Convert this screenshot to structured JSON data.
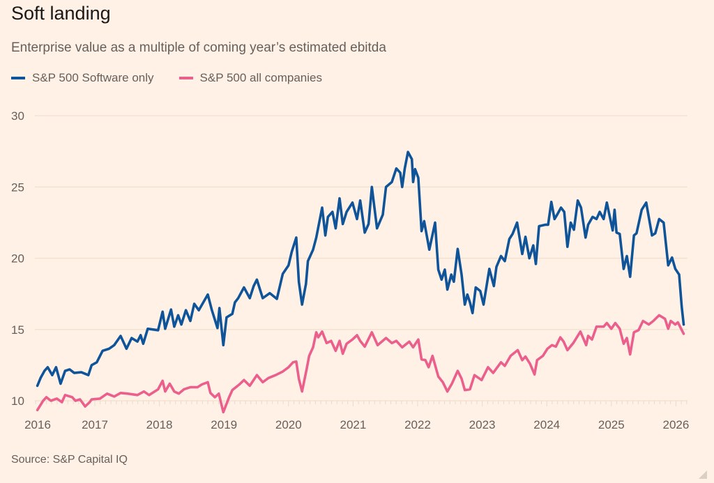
{
  "header": {
    "title": "Soft landing",
    "subtitle": "Enterprise value as a multiple of coming year’s estimated ebitda"
  },
  "footer": {
    "source": "Source: S&P Capital IQ"
  },
  "chart_data": {
    "type": "line",
    "title": "Soft landing",
    "subtitle": "Enterprise value as a multiple of coming year’s estimated ebitda",
    "xlabel": "",
    "ylabel": "",
    "xlim": [
      2016,
      2026.2
    ],
    "ylim": [
      10,
      30
    ],
    "x_ticks": [
      "2016",
      "2017",
      "2018",
      "2019",
      "2020",
      "2021",
      "2022",
      "2023",
      "2024",
      "2025",
      "2026"
    ],
    "y_ticks": [
      "10",
      "15",
      "20",
      "25",
      "30"
    ],
    "grid": "horizontal",
    "legend_position": "top-left",
    "background": "#fff1e5",
    "series": [
      {
        "name": "S&P 500 Software only",
        "color": "#0f5499",
        "x": [
          2016.11,
          2016.16,
          2016.22,
          2016.27,
          2016.34,
          2016.4,
          2016.47,
          2016.54,
          2016.61,
          2016.68,
          2016.79,
          2016.9,
          2016.95,
          2017.03,
          2017.12,
          2017.22,
          2017.3,
          2017.4,
          2017.49,
          2017.57,
          2017.66,
          2017.71,
          2017.75,
          2017.82,
          2017.98,
          2018.05,
          2018.09,
          2018.18,
          2018.23,
          2018.29,
          2018.34,
          2018.41,
          2018.48,
          2018.54,
          2018.61,
          2018.75,
          2018.81,
          2018.9,
          2018.93,
          2018.99,
          2019.04,
          2019.13,
          2019.17,
          2019.22,
          2019.31,
          2019.4,
          2019.46,
          2019.51,
          2019.6,
          2019.71,
          2019.82,
          2019.91,
          2020.0,
          2020.05,
          2020.12,
          2020.16,
          2020.21,
          2020.27,
          2020.3,
          2020.38,
          2020.43,
          2020.52,
          2020.57,
          2020.61,
          2020.68,
          2020.73,
          2020.79,
          2020.84,
          2020.9,
          2020.99,
          2021.06,
          2021.11,
          2021.18,
          2021.24,
          2021.29,
          2021.37,
          2021.46,
          2021.51,
          2021.6,
          2021.67,
          2021.73,
          2021.76,
          2021.8,
          2021.85,
          2021.91,
          2021.93,
          2021.96,
          2022.01,
          2022.06,
          2022.1,
          2022.14,
          2022.18,
          2022.27,
          2022.32,
          2022.37,
          2022.42,
          2022.46,
          2022.52,
          2022.56,
          2022.62,
          2022.68,
          2022.73,
          2022.77,
          2022.81,
          2022.85,
          2022.9,
          2022.97,
          2023.02,
          2023.11,
          2023.18,
          2023.22,
          2023.29,
          2023.35,
          2023.42,
          2023.47,
          2023.54,
          2023.62,
          2023.67,
          2023.73,
          2023.79,
          2023.83,
          2023.88,
          2023.98,
          2024.02,
          2024.07,
          2024.12,
          2024.16,
          2024.22,
          2024.27,
          2024.32,
          2024.37,
          2024.42,
          2024.48,
          2024.53,
          2024.6,
          2024.64,
          2024.71,
          2024.77,
          2024.82,
          2024.88,
          2024.93,
          2025.02,
          2025.05,
          2025.08,
          2025.13,
          2025.19,
          2025.24,
          2025.29,
          2025.35,
          2025.39,
          2025.47,
          2025.54,
          2025.63,
          2025.68,
          2025.74,
          2025.81,
          2025.88,
          2025.94,
          2025.99,
          2026.05,
          2026.09,
          2026.12
        ],
        "y": [
          11.05,
          11.6,
          12.1,
          12.35,
          11.8,
          12.35,
          11.2,
          12.1,
          12.2,
          11.95,
          12.0,
          11.8,
          12.5,
          12.7,
          13.5,
          13.65,
          13.9,
          14.55,
          13.65,
          14.4,
          14.15,
          14.6,
          14.0,
          15.05,
          14.95,
          16.25,
          15.05,
          16.4,
          15.2,
          16.0,
          15.35,
          16.35,
          15.6,
          16.8,
          16.35,
          17.45,
          16.4,
          15.1,
          16.5,
          13.9,
          15.85,
          16.1,
          16.9,
          17.2,
          17.95,
          17.2,
          18.05,
          18.5,
          17.2,
          17.55,
          17.15,
          18.9,
          19.5,
          20.45,
          21.45,
          18.35,
          16.75,
          18.2,
          19.8,
          20.6,
          21.45,
          23.55,
          21.6,
          22.9,
          23.25,
          22.1,
          24.2,
          22.4,
          23.25,
          23.9,
          22.75,
          24.05,
          21.8,
          22.4,
          25.0,
          22.1,
          23.05,
          25.0,
          25.35,
          26.3,
          26.0,
          25.0,
          26.3,
          27.45,
          26.95,
          25.35,
          26.25,
          25.65,
          21.9,
          22.6,
          21.6,
          20.6,
          22.5,
          19.2,
          18.5,
          19.2,
          17.8,
          18.85,
          18.35,
          20.65,
          18.85,
          16.75,
          17.45,
          16.9,
          16.15,
          17.95,
          17.7,
          16.75,
          19.25,
          18.05,
          19.4,
          20.15,
          19.8,
          21.35,
          21.7,
          22.5,
          20.3,
          21.5,
          20.0,
          20.9,
          19.6,
          22.25,
          22.35,
          22.35,
          23.95,
          22.75,
          23.05,
          23.55,
          23.25,
          20.8,
          22.5,
          22.0,
          24.05,
          23.55,
          21.45,
          22.35,
          22.9,
          22.75,
          23.25,
          22.75,
          23.9,
          21.95,
          23.4,
          21.8,
          21.7,
          19.25,
          20.15,
          18.7,
          21.6,
          21.75,
          23.4,
          23.9,
          21.6,
          21.75,
          22.75,
          22.5,
          19.5,
          20.05,
          19.25,
          18.85,
          16.6,
          15.35
        ]
      },
      {
        "name": "S&P 500 all companies",
        "color": "#eb5f8d",
        "x": [
          2016.11,
          2016.2,
          2016.25,
          2016.32,
          2016.41,
          2016.49,
          2016.54,
          2016.65,
          2016.7,
          2016.77,
          2016.85,
          2016.92,
          2016.95,
          2017.08,
          2017.19,
          2017.3,
          2017.4,
          2017.51,
          2017.66,
          2017.76,
          2017.84,
          2017.98,
          2018.05,
          2018.09,
          2018.16,
          2018.23,
          2018.3,
          2018.38,
          2018.48,
          2018.59,
          2018.66,
          2018.75,
          2018.79,
          2018.86,
          2018.92,
          2018.99,
          2019.08,
          2019.13,
          2019.24,
          2019.31,
          2019.4,
          2019.51,
          2019.6,
          2019.69,
          2019.8,
          2019.91,
          2020.0,
          2020.07,
          2020.12,
          2020.16,
          2020.21,
          2020.28,
          2020.32,
          2020.38,
          2020.43,
          2020.46,
          2020.52,
          2020.59,
          2020.66,
          2020.73,
          2020.79,
          2020.84,
          2020.9,
          2020.99,
          2021.06,
          2021.11,
          2021.18,
          2021.29,
          2021.38,
          2021.51,
          2021.6,
          2021.67,
          2021.76,
          2021.87,
          2021.93,
          2022.01,
          2022.06,
          2022.12,
          2022.17,
          2022.23,
          2022.32,
          2022.39,
          2022.46,
          2022.53,
          2022.62,
          2022.68,
          2022.73,
          2022.81,
          2022.88,
          2022.99,
          2023.09,
          2023.17,
          2023.29,
          2023.35,
          2023.44,
          2023.55,
          2023.62,
          2023.67,
          2023.74,
          2023.81,
          2023.85,
          2023.94,
          2024.01,
          2024.08,
          2024.14,
          2024.21,
          2024.26,
          2024.32,
          2024.41,
          2024.52,
          2024.61,
          2024.64,
          2024.7,
          2024.77,
          2024.88,
          2024.93,
          2025.0,
          2025.06,
          2025.13,
          2025.19,
          2025.24,
          2025.29,
          2025.35,
          2025.42,
          2025.49,
          2025.58,
          2025.65,
          2025.74,
          2025.83,
          2025.88,
          2025.92,
          2025.99,
          2026.03,
          2026.12
        ],
        "y": [
          9.35,
          10.0,
          10.25,
          10.0,
          10.15,
          9.9,
          10.4,
          10.25,
          10.0,
          10.1,
          9.6,
          9.9,
          10.1,
          10.15,
          10.5,
          10.3,
          10.55,
          10.5,
          10.4,
          10.65,
          10.4,
          10.8,
          11.4,
          10.65,
          11.2,
          10.65,
          10.5,
          10.8,
          10.95,
          10.95,
          11.15,
          11.3,
          10.55,
          10.25,
          10.5,
          9.2,
          10.25,
          10.75,
          11.15,
          11.45,
          11.05,
          11.8,
          11.3,
          11.6,
          11.8,
          12.05,
          12.35,
          12.7,
          12.75,
          11.55,
          10.65,
          12.2,
          13.15,
          13.75,
          14.8,
          14.45,
          14.85,
          14.05,
          14.2,
          13.5,
          14.2,
          13.3,
          14.0,
          14.3,
          14.6,
          14.2,
          13.8,
          14.8,
          13.9,
          14.4,
          14.05,
          14.2,
          13.75,
          14.15,
          13.75,
          14.3,
          12.9,
          12.85,
          12.35,
          13.15,
          11.7,
          11.3,
          10.65,
          11.2,
          12.1,
          11.55,
          10.75,
          10.8,
          11.8,
          11.45,
          12.35,
          11.95,
          12.7,
          12.45,
          13.15,
          13.55,
          12.85,
          13.1,
          12.6,
          11.85,
          12.85,
          13.15,
          13.65,
          13.9,
          13.8,
          14.45,
          14.15,
          13.55,
          14.05,
          14.85,
          13.9,
          14.55,
          14.3,
          15.2,
          15.2,
          15.45,
          15.05,
          15.45,
          15.05,
          14.0,
          14.4,
          13.25,
          14.8,
          14.95,
          15.6,
          15.35,
          15.6,
          16.0,
          15.75,
          15.05,
          15.6,
          15.35,
          15.5,
          14.7
        ]
      }
    ]
  }
}
